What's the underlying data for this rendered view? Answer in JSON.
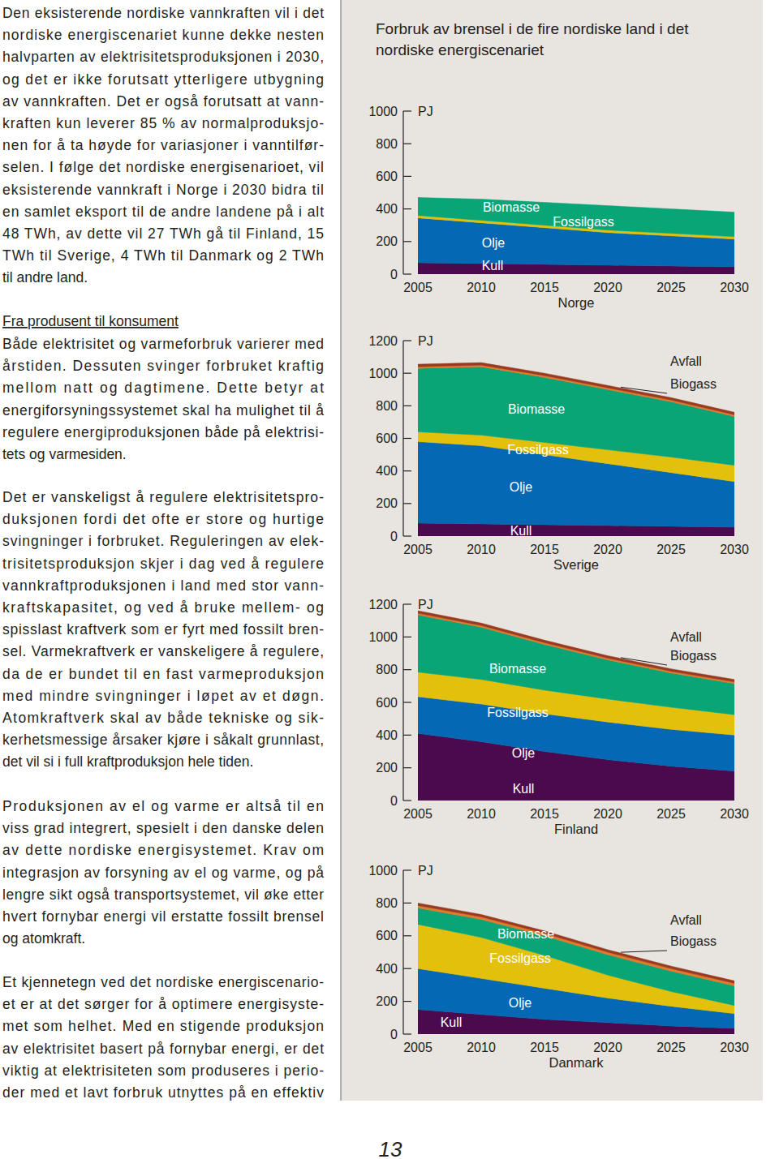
{
  "document": {
    "paragraphs": [
      {
        "lines": [
          "Den eksisterende nordiske vannkraften vil i det",
          "nordiske energiscenariet kunne dekke nesten",
          "halvparten av elektrisitetsproduksjonen i 2030,",
          "og det er ikke forutsatt ytterligere utbygning",
          "av vannkraften. Det er også forutsatt at vann-",
          "kraften kun leverer 85 % av normalproduksjo-",
          "nen for å ta høyde for variasjoner i vanntilfør-",
          "selen. I følge det nordiske energisenarioet, vil",
          "eksisterende vannkraft i Norge i 2030 bidra til",
          "en samlet eksport til de andre landene på i alt",
          "48 TWh, av dette vil 27 TWh gå til Finland, 15",
          "TWh til Sverige, 4 TWh til Danmark og 2 TWh",
          "til andre land."
        ]
      },
      {
        "heading": "Fra produsent til konsument",
        "lines": [
          "Både elektrisitet og varmeforbruk varierer med",
          "årstiden. Dessuten svinger forbruket kraftig",
          "mellom natt og dagtimene. Dette betyr at",
          "energiforsyningssystemet skal ha mulighet til å",
          "regulere energiproduksjonen både på elektrisi-",
          "tets og varmesiden."
        ]
      },
      {
        "lines": [
          "Det er vanskeligst å regulere elektrisitetspro-",
          "duksjonen fordi det ofte er store og hurtige",
          "svingninger i forbruket. Reguleringen av elek-",
          "trisitetsproduksjon skjer i dag ved å regulere",
          "vannkraftproduksjonen i land med stor vann-",
          "kraftskapasitet, og ved å bruke mellem- og",
          "spisslast kraftverk som er fyrt med fossilt bren-",
          "sel. Varmekraftverk er vanskeligere å regulere,",
          "da de er bundet til en fast varmeproduksjon",
          "med mindre svingninger i løpet av et døgn.",
          "Atomkraftverk skal av både tekniske og sik-",
          "kerhetsmessige årsaker kjøre i såkalt grunnlast,",
          "det vil si i full kraftproduksjon hele tiden."
        ]
      },
      {
        "lines": [
          "Produksjonen av el og varme er altså til en",
          "viss grad integrert, spesielt i den danske delen",
          "av dette nordiske energisystemet.  Krav om",
          "integrasjon av forsyning av el og varme, og på",
          "lengre sikt også transportsystemet, vil øke etter",
          "hvert fornybar energi vil erstatte fossilt brensel",
          "og atomkraft."
        ]
      },
      {
        "lines": [
          "Et kjennetegn ved det nordiske energiscenario-",
          "et er at det sørger for å optimere energisyste-",
          "met som helhet. Med en stigende produksjon",
          "av elektrisitet basert på fornybar energi, er det",
          "viktig at elektrisiteten som produseres i perio-",
          "der med et lavt forbruk utnyttes på en effektiv"
        ]
      }
    ],
    "panel_title": [
      "Forbruk av brensel i de fire nordiske land i det",
      "nordiske energiscenariet"
    ],
    "page_number": "13"
  },
  "chart_data": [
    {
      "type": "area",
      "stacked": true,
      "title": "Norge",
      "ylabel": "PJ",
      "x": [
        2005,
        2010,
        2015,
        2020,
        2025,
        2030
      ],
      "xlim": [
        2005,
        2030
      ],
      "xticks": [
        2005,
        2010,
        2015,
        2020,
        2025,
        2030
      ],
      "ylim": [
        0,
        1000
      ],
      "yticks": [
        0,
        200,
        400,
        600,
        800,
        1000
      ],
      "series": [
        {
          "name": "Kull",
          "color": "#4b0a4e",
          "values": [
            70,
            65,
            60,
            55,
            50,
            45
          ]
        },
        {
          "name": "Olje",
          "color": "#0468b4",
          "values": [
            275,
            250,
            225,
            200,
            185,
            170
          ]
        },
        {
          "name": "Fossilgass",
          "color": "#e3c00c",
          "values": [
            15,
            15,
            15,
            15,
            15,
            15
          ]
        },
        {
          "name": "Biomasse",
          "color": "#0aa577",
          "values": [
            110,
            130,
            140,
            150,
            150,
            150
          ]
        }
      ]
    },
    {
      "type": "area",
      "stacked": true,
      "title": "Sverige",
      "ylabel": "PJ",
      "x": [
        2005,
        2010,
        2015,
        2020,
        2025,
        2030
      ],
      "xlim": [
        2005,
        2030
      ],
      "xticks": [
        2005,
        2010,
        2015,
        2020,
        2025,
        2030
      ],
      "ylim": [
        0,
        1200
      ],
      "yticks": [
        0,
        200,
        400,
        600,
        800,
        1000,
        1200
      ],
      "series": [
        {
          "name": "Kull",
          "color": "#4b0a4e",
          "values": [
            80,
            75,
            70,
            65,
            60,
            55
          ]
        },
        {
          "name": "Olje",
          "color": "#0468b4",
          "values": [
            500,
            480,
            430,
            380,
            330,
            280
          ]
        },
        {
          "name": "Fossilgass",
          "color": "#e3c00c",
          "values": [
            60,
            65,
            75,
            85,
            95,
            100
          ]
        },
        {
          "name": "Biomasse",
          "color": "#0aa577",
          "values": [
            390,
            420,
            400,
            370,
            340,
            300
          ]
        },
        {
          "name": "Biogass",
          "color": "#e27a2a",
          "values": [
            10,
            10,
            10,
            10,
            10,
            10
          ]
        },
        {
          "name": "Avfall",
          "color": "#9b3a20",
          "values": [
            15,
            15,
            15,
            15,
            15,
            15
          ]
        }
      ]
    },
    {
      "type": "area",
      "stacked": true,
      "title": "Finland",
      "ylabel": "PJ",
      "x": [
        2005,
        2010,
        2015,
        2020,
        2025,
        2030
      ],
      "xlim": [
        2005,
        2030
      ],
      "xticks": [
        2005,
        2010,
        2015,
        2020,
        2025,
        2030
      ],
      "ylim": [
        0,
        1200
      ],
      "yticks": [
        0,
        200,
        400,
        600,
        800,
        1000,
        1200
      ],
      "series": [
        {
          "name": "Kull",
          "color": "#4b0a4e",
          "values": [
            410,
            360,
            300,
            250,
            210,
            180
          ]
        },
        {
          "name": "Olje",
          "color": "#0468b4",
          "values": [
            225,
            230,
            230,
            230,
            225,
            220
          ]
        },
        {
          "name": "Fossilgass",
          "color": "#e3c00c",
          "values": [
            150,
            150,
            145,
            140,
            135,
            125
          ]
        },
        {
          "name": "Biomasse",
          "color": "#0aa577",
          "values": [
            350,
            320,
            280,
            240,
            210,
            190
          ]
        },
        {
          "name": "Biogass",
          "color": "#e27a2a",
          "values": [
            10,
            10,
            10,
            10,
            10,
            10
          ]
        },
        {
          "name": "Avfall",
          "color": "#9b3a20",
          "values": [
            15,
            15,
            15,
            15,
            15,
            15
          ]
        }
      ]
    },
    {
      "type": "area",
      "stacked": true,
      "title": "Danmark",
      "ylabel": "PJ",
      "x": [
        2005,
        2010,
        2015,
        2020,
        2025,
        2030
      ],
      "xlim": [
        2005,
        2030
      ],
      "xticks": [
        2005,
        2010,
        2015,
        2020,
        2025,
        2030
      ],
      "ylim": [
        0,
        1000
      ],
      "yticks": [
        0,
        200,
        400,
        600,
        800,
        1000
      ],
      "series": [
        {
          "name": "Kull",
          "color": "#4b0a4e",
          "values": [
            150,
            120,
            90,
            70,
            50,
            35
          ]
        },
        {
          "name": "Olje",
          "color": "#0468b4",
          "values": [
            250,
            220,
            190,
            150,
            120,
            90
          ]
        },
        {
          "name": "Fossilgass",
          "color": "#e3c00c",
          "values": [
            270,
            250,
            200,
            140,
            90,
            50
          ]
        },
        {
          "name": "Biomasse",
          "color": "#0aa577",
          "values": [
            100,
            110,
            120,
            125,
            125,
            120
          ]
        },
        {
          "name": "Biogass",
          "color": "#e27a2a",
          "values": [
            15,
            15,
            15,
            15,
            15,
            15
          ]
        },
        {
          "name": "Avfall",
          "color": "#9b3a20",
          "values": [
            15,
            15,
            15,
            15,
            15,
            15
          ]
        }
      ]
    }
  ]
}
